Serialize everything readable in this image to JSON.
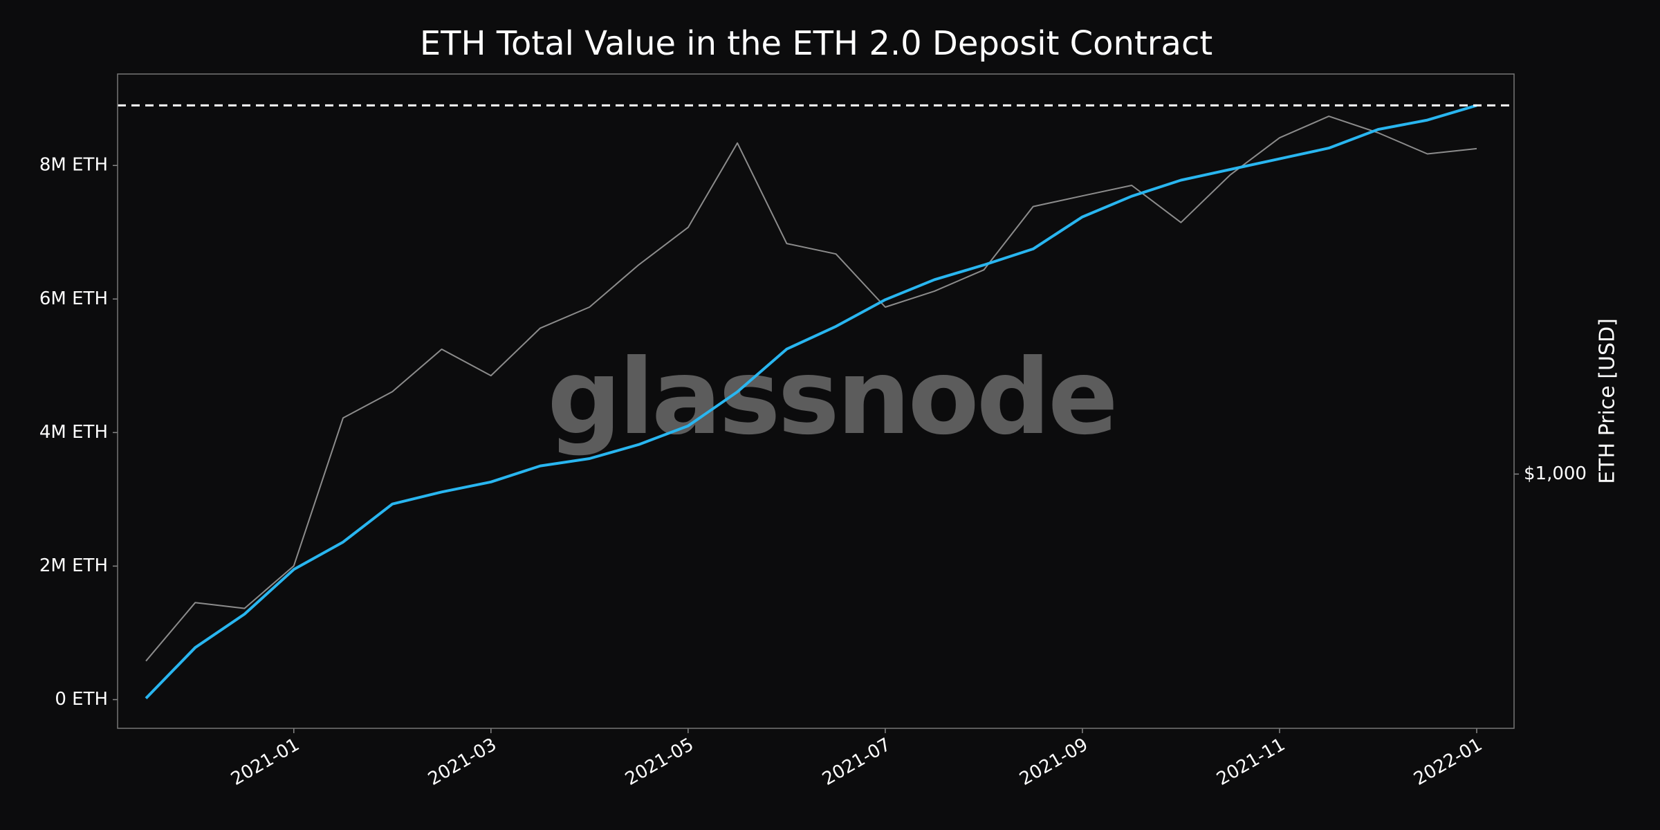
{
  "chart_data": {
    "type": "line",
    "title": "ETH Total Value in the ETH 2.0 Deposit Contract",
    "y2label": "ETH Price [USD]",
    "watermark": "glassnode",
    "x": [
      null,
      null,
      null,
      "2021-01",
      null,
      null,
      null,
      "2021-03",
      null,
      null,
      null,
      "2021-05",
      null,
      null,
      null,
      "2021-07",
      null,
      null,
      null,
      "2021-09",
      null,
      null,
      null,
      "2021-11",
      null,
      null,
      null,
      "2022-01"
    ],
    "series": [
      {
        "color": "#29b6f0",
        "axis": "y",
        "values": [
          20000,
          780000,
          1280000,
          1950000,
          2360000,
          2930000,
          3110000,
          3260000,
          3500000,
          3610000,
          3820000,
          4100000,
          4610000,
          5250000,
          5590000,
          5990000,
          6290000,
          6510000,
          6750000,
          7230000,
          7540000,
          7780000,
          7940000,
          8100000,
          8260000,
          8540000,
          8680000,
          8900000
        ]
      },
      {
        "color": "#8c8c8c",
        "axis": "y2",
        "values": [
          464,
          590,
          576,
          686,
          1259,
          1403,
          1670,
          1498,
          1821,
          1985,
          2362,
          2754,
          3894,
          2577,
          2469,
          1985,
          2120,
          2313,
          3000,
          3134,
          3273,
          2810,
          3417,
          3979,
          4346,
          4061,
          3724,
          3805
        ]
      }
    ],
    "reference_line": 8900000,
    "ylim": [
      -430000,
      9370000
    ],
    "yticks": [
      {
        "value": 0,
        "label": "0 ETH"
      },
      {
        "value": 2000000,
        "label": "2M ETH"
      },
      {
        "value": 4000000,
        "label": "4M ETH"
      },
      {
        "value": 6000000,
        "label": "6M ETH"
      },
      {
        "value": 8000000,
        "label": "8M ETH"
      }
    ],
    "y2lim": [
      352,
      5170
    ],
    "y2log": true,
    "y2ticks": [
      {
        "value": 1000,
        "label": "$1,000"
      }
    ],
    "grid": false
  }
}
